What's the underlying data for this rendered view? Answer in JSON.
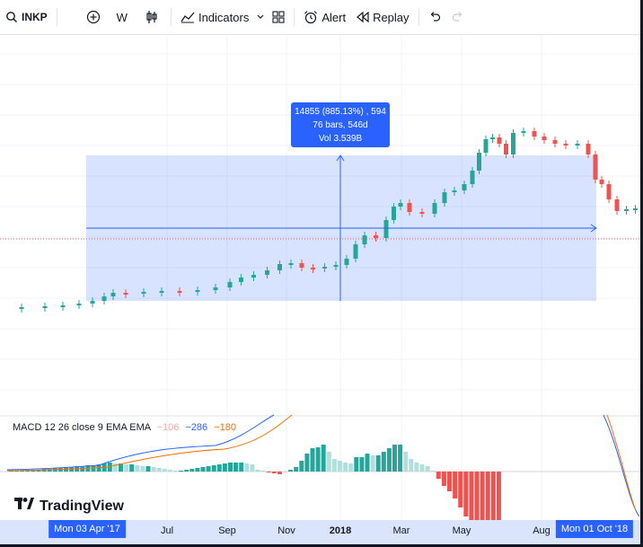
{
  "toolbar": {
    "symbol": "INKP",
    "interval": "W",
    "indicators_label": "Indicators",
    "alert_label": "Alert",
    "replay_label": "Replay"
  },
  "measure": {
    "line1": "14855 (885.13%) , 594",
    "line2": "76 bars, 546d",
    "line3": "Vol 3.539B"
  },
  "macd": {
    "name": "MACD",
    "params": "12 26 close 9 EMA EMA",
    "hist_value": "−106",
    "macd_value": "−286",
    "signal_value": "−180"
  },
  "time_axis": {
    "start_highlight": "Mon 03 Apr '17",
    "labels": [
      "Jul",
      "Sep",
      "Nov",
      "2018",
      "Mar",
      "May",
      "Aug"
    ],
    "end_highlight": "Mon 01 Oct '18"
  },
  "logo_text": "TradingView",
  "colors": {
    "up": "#26a69a",
    "down": "#ef5350",
    "selection": "#2962ff",
    "macd_line": "#2962ff",
    "signal_line": "#ff6d00"
  }
}
